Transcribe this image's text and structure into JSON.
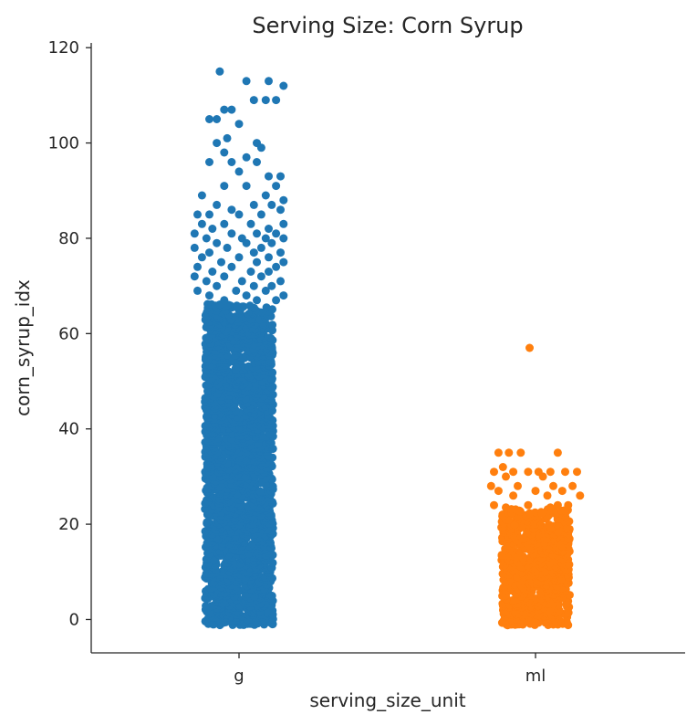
{
  "chart_data": {
    "type": "scatter",
    "subtype": "strip",
    "title": "Serving Size: Corn Syrup",
    "xlabel": "serving_size_unit",
    "ylabel": "corn_syrup_idx",
    "categories": [
      "g",
      "ml"
    ],
    "ylim": [
      -7,
      121
    ],
    "yticks": [
      0,
      20,
      40,
      60,
      80,
      100,
      120
    ],
    "ytick_labels": [
      "0",
      "20",
      "40",
      "60",
      "80",
      "100",
      "120"
    ],
    "grid": false,
    "legend": "none",
    "series": [
      {
        "category": "g",
        "color": "#1f77b4",
        "dense_range": [
          -1,
          66
        ],
        "points": [
          [
            -0.13,
            115
          ],
          [
            0.05,
            113
          ],
          [
            0.2,
            113
          ],
          [
            0.1,
            109
          ],
          [
            0.18,
            109
          ],
          [
            0.25,
            109
          ],
          [
            0.3,
            112
          ],
          [
            -0.05,
            107
          ],
          [
            -0.1,
            107
          ],
          [
            -0.2,
            105
          ],
          [
            -0.15,
            105
          ],
          [
            0.0,
            104
          ],
          [
            -0.08,
            101
          ],
          [
            -0.15,
            100
          ],
          [
            0.12,
            100
          ],
          [
            0.15,
            99
          ],
          [
            -0.1,
            98
          ],
          [
            0.05,
            97
          ],
          [
            -0.05,
            96
          ],
          [
            -0.2,
            96
          ],
          [
            0.12,
            96
          ],
          [
            0.0,
            94
          ],
          [
            0.2,
            93
          ],
          [
            0.28,
            93
          ],
          [
            -0.1,
            91
          ],
          [
            0.05,
            91
          ],
          [
            0.25,
            91
          ],
          [
            -0.25,
            89
          ],
          [
            0.18,
            89
          ],
          [
            0.3,
            88
          ],
          [
            -0.15,
            87
          ],
          [
            0.1,
            87
          ],
          [
            0.22,
            87
          ],
          [
            -0.05,
            86
          ],
          [
            0.28,
            86
          ],
          [
            -0.28,
            85
          ],
          [
            -0.2,
            85
          ],
          [
            0.0,
            85
          ],
          [
            0.15,
            85
          ],
          [
            -0.25,
            83
          ],
          [
            -0.1,
            83
          ],
          [
            0.08,
            83
          ],
          [
            0.3,
            83
          ],
          [
            -0.18,
            82
          ],
          [
            0.2,
            82
          ],
          [
            -0.3,
            81
          ],
          [
            -0.05,
            81
          ],
          [
            0.12,
            81
          ],
          [
            0.25,
            81
          ],
          [
            -0.22,
            80
          ],
          [
            0.02,
            80
          ],
          [
            0.18,
            80
          ],
          [
            0.3,
            80
          ],
          [
            -0.15,
            79
          ],
          [
            0.05,
            79
          ],
          [
            0.22,
            79
          ],
          [
            -0.3,
            78
          ],
          [
            -0.08,
            78
          ],
          [
            0.15,
            78
          ],
          [
            -0.2,
            77
          ],
          [
            0.1,
            77
          ],
          [
            0.28,
            77
          ],
          [
            -0.25,
            76
          ],
          [
            0.0,
            76
          ],
          [
            0.2,
            76
          ],
          [
            -0.12,
            75
          ],
          [
            0.12,
            75
          ],
          [
            0.3,
            75
          ],
          [
            -0.28,
            74
          ],
          [
            -0.05,
            74
          ],
          [
            0.25,
            74
          ],
          [
            -0.18,
            73
          ],
          [
            0.08,
            73
          ],
          [
            0.2,
            73
          ],
          [
            -0.3,
            72
          ],
          [
            -0.1,
            72
          ],
          [
            0.15,
            72
          ],
          [
            -0.22,
            71
          ],
          [
            0.02,
            71
          ],
          [
            0.28,
            71
          ],
          [
            -0.15,
            70
          ],
          [
            0.1,
            70
          ],
          [
            0.22,
            70
          ],
          [
            -0.28,
            69
          ],
          [
            -0.02,
            69
          ],
          [
            0.18,
            69
          ],
          [
            -0.2,
            68
          ],
          [
            0.05,
            68
          ],
          [
            0.3,
            68
          ],
          [
            -0.1,
            67
          ],
          [
            0.12,
            67
          ],
          [
            0.25,
            67
          ]
        ]
      },
      {
        "category": "ml",
        "color": "#ff7f0e",
        "dense_range": [
          -1,
          23
        ],
        "points": [
          [
            -0.04,
            57
          ],
          [
            -0.25,
            35
          ],
          [
            -0.18,
            35
          ],
          [
            -0.1,
            35
          ],
          [
            0.15,
            35
          ],
          [
            -0.22,
            32
          ],
          [
            -0.28,
            31
          ],
          [
            -0.15,
            31
          ],
          [
            -0.05,
            31
          ],
          [
            0.02,
            31
          ],
          [
            0.1,
            31
          ],
          [
            0.2,
            31
          ],
          [
            0.28,
            31
          ],
          [
            -0.2,
            30
          ],
          [
            0.05,
            30
          ],
          [
            -0.3,
            28
          ],
          [
            -0.12,
            28
          ],
          [
            0.12,
            28
          ],
          [
            0.25,
            28
          ],
          [
            -0.25,
            27
          ],
          [
            0.0,
            27
          ],
          [
            0.18,
            27
          ],
          [
            -0.15,
            26
          ],
          [
            0.08,
            26
          ],
          [
            0.3,
            26
          ],
          [
            -0.28,
            24
          ],
          [
            -0.05,
            24
          ],
          [
            0.15,
            24
          ],
          [
            0.22,
            24
          ],
          [
            -0.2,
            23.5
          ],
          [
            0.1,
            23.5
          ]
        ]
      }
    ]
  }
}
